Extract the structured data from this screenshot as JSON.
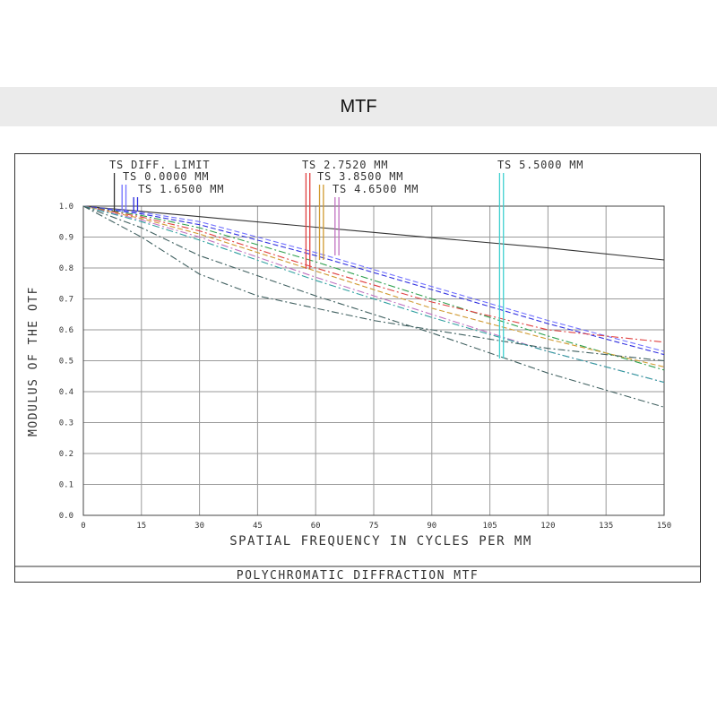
{
  "header": {
    "title": "MTF"
  },
  "chart_data": {
    "type": "line",
    "title": "POLYCHROMATIC DIFFRACTION MTF",
    "xlabel": "SPATIAL FREQUENCY IN CYCLES PER MM",
    "ylabel": "MODULUS OF THE OTF",
    "xlim": [
      0,
      150
    ],
    "ylim": [
      0,
      1
    ],
    "xticks": [
      0,
      15,
      30,
      45,
      60,
      75,
      90,
      105,
      120,
      135,
      150
    ],
    "xtick_labels": [
      "0",
      "15",
      "30",
      "45",
      "60",
      "75",
      "90",
      "105",
      "120",
      "135",
      "150"
    ],
    "yticks": [
      0,
      0.1,
      0.2,
      0.3,
      0.4,
      0.5,
      0.6,
      0.7,
      0.8,
      0.9,
      1.0
    ],
    "ytick_labels": [
      "0.0",
      "0.1",
      "0.2",
      "0.3",
      "0.4",
      "0.5",
      "0.6",
      "0.7",
      "0.8",
      "0.9",
      "1.0"
    ],
    "grid": true,
    "legend": [
      {
        "label": "TS DIFF. LIMIT",
        "color": "#333333",
        "markers": [
          8
        ]
      },
      {
        "label": "TS 0.0000 MM",
        "color": "#7070ff",
        "markers": [
          10,
          11
        ]
      },
      {
        "label": "TS 1.6500 MM",
        "color": "#2f2fdf",
        "markers": [
          13,
          14
        ]
      },
      {
        "label": "TS 2.7520 MM",
        "color": "#e04040",
        "markers": [
          57.5,
          58.5
        ]
      },
      {
        "label": "TS 3.8500 MM",
        "color": "#d09a30",
        "markers": [
          61,
          62
        ]
      },
      {
        "label": "TS 4.6500 MM",
        "color": "#c070c0",
        "markers": [
          65,
          66
        ]
      },
      {
        "label": "TS 5.5000 MM",
        "color": "#40d0d0",
        "markers": [
          107.5,
          108.5
        ]
      }
    ],
    "series": [
      {
        "color": "#333333",
        "dash": "",
        "x": [
          0,
          30,
          60,
          90,
          120,
          150
        ],
        "y": [
          1.0,
          0.966,
          0.932,
          0.898,
          0.865,
          0.826
        ]
      },
      {
        "color": "#7070ff",
        "dash": "6 3",
        "x": [
          0,
          15,
          30,
          60,
          90,
          120,
          150
        ],
        "y": [
          1.0,
          0.98,
          0.95,
          0.85,
          0.74,
          0.63,
          0.53
        ]
      },
      {
        "color": "#2f2fdf",
        "dash": "6 3",
        "x": [
          0,
          15,
          30,
          60,
          90,
          120,
          150
        ],
        "y": [
          1.0,
          0.975,
          0.94,
          0.84,
          0.73,
          0.62,
          0.52
        ]
      },
      {
        "color": "#2fa04f",
        "dash": "8 3 2 3",
        "x": [
          0,
          15,
          30,
          60,
          90,
          120,
          150
        ],
        "y": [
          1.0,
          0.97,
          0.93,
          0.82,
          0.7,
          0.58,
          0.47
        ]
      },
      {
        "color": "#e04040",
        "dash": "8 3 2 3",
        "x": [
          0,
          15,
          30,
          60,
          90,
          120,
          150
        ],
        "y": [
          1.0,
          0.965,
          0.92,
          0.8,
          0.69,
          0.6,
          0.56
        ]
      },
      {
        "color": "#d09a30",
        "dash": "6 3",
        "x": [
          0,
          15,
          30,
          60,
          90,
          120,
          150
        ],
        "y": [
          1.0,
          0.96,
          0.91,
          0.79,
          0.67,
          0.57,
          0.48
        ]
      },
      {
        "color": "#c070c0",
        "dash": "8 3 2 3",
        "x": [
          0,
          15,
          30,
          60,
          90,
          120,
          150
        ],
        "y": [
          1.0,
          0.955,
          0.9,
          0.77,
          0.65,
          0.53,
          0.43
        ]
      },
      {
        "color": "#30a0a0",
        "dash": "8 3 2 3",
        "x": [
          0,
          15,
          30,
          60,
          90,
          120,
          150
        ],
        "y": [
          1.0,
          0.95,
          0.89,
          0.76,
          0.64,
          0.53,
          0.43
        ]
      },
      {
        "color": "#406060",
        "dash": "8 3 2 3",
        "x": [
          0,
          15,
          30,
          60,
          90,
          120,
          150
        ],
        "y": [
          1.0,
          0.93,
          0.84,
          0.71,
          0.59,
          0.46,
          0.35
        ]
      },
      {
        "color": "#406060",
        "dash": "8 3 2 3",
        "x": [
          0,
          15,
          30,
          45,
          60,
          75,
          90,
          105,
          120,
          150
        ],
        "y": [
          1.0,
          0.9,
          0.78,
          0.71,
          0.67,
          0.63,
          0.6,
          0.57,
          0.54,
          0.5
        ]
      }
    ]
  }
}
